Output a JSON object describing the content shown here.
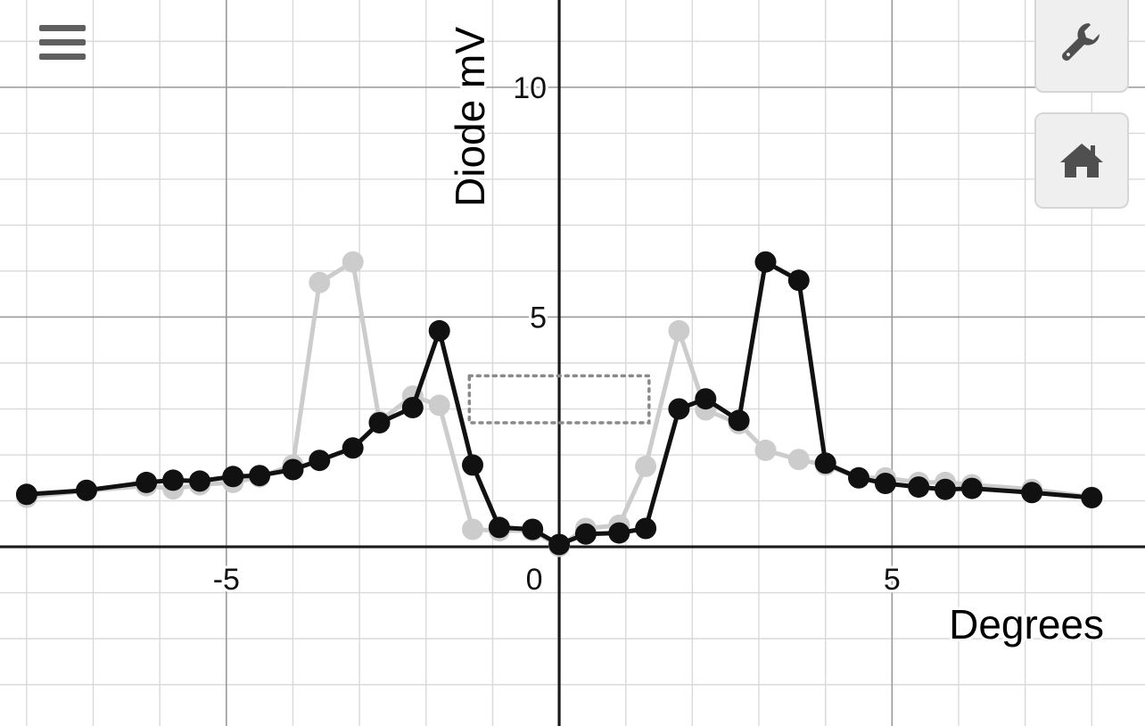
{
  "chart_data": {
    "type": "line",
    "xlabel": "Degrees",
    "ylabel": "Diode mV",
    "xlim": [
      -8.4,
      8.8
    ],
    "ylim": [
      -3.9,
      11.9
    ],
    "grid": true,
    "minor_grid": true,
    "x_ticks": [
      {
        "value": -5,
        "label": "-5"
      },
      {
        "value": 0,
        "label": "0"
      },
      {
        "value": 5,
        "label": "5"
      }
    ],
    "y_ticks": [
      {
        "value": 5,
        "label": "5"
      },
      {
        "value": 10,
        "label": "10"
      }
    ],
    "series": [
      {
        "color": "#cccccc",
        "x": [
          -8.0,
          -7.1,
          -6.2,
          -5.8,
          -5.4,
          -4.9,
          -4.5,
          -4.0,
          -3.6,
          -3.1,
          -2.7,
          -2.2,
          -1.8,
          -1.3,
          -0.9,
          -0.4,
          0.0,
          0.4,
          0.9,
          1.3,
          1.8,
          2.2,
          2.7,
          3.1,
          3.6,
          4.0,
          4.5,
          4.9,
          5.4,
          5.8,
          6.2,
          7.1,
          8.0
        ],
        "y": [
          1.08,
          1.22,
          1.33,
          1.26,
          1.35,
          1.4,
          1.52,
          1.78,
          5.75,
          6.2,
          2.73,
          3.28,
          3.08,
          0.38,
          0.35,
          0.35,
          0.01,
          0.4,
          0.47,
          1.75,
          4.7,
          2.98,
          2.68,
          2.1,
          1.9,
          1.78,
          1.5,
          1.5,
          1.4,
          1.4,
          1.35,
          1.25,
          1.08
        ]
      },
      {
        "color": "#111111",
        "x": [
          -8.0,
          -7.1,
          -6.2,
          -5.8,
          -5.4,
          -4.9,
          -4.5,
          -4.0,
          -3.6,
          -3.1,
          -2.7,
          -2.2,
          -1.8,
          -1.3,
          -0.9,
          -0.4,
          0.0,
          0.4,
          0.9,
          1.3,
          1.8,
          2.2,
          2.7,
          3.1,
          3.6,
          4.0,
          4.5,
          4.9,
          5.4,
          5.8,
          6.2,
          7.1,
          8.0
        ],
        "y": [
          1.14,
          1.23,
          1.4,
          1.45,
          1.43,
          1.53,
          1.55,
          1.68,
          1.88,
          2.15,
          2.7,
          3.03,
          4.7,
          1.78,
          0.42,
          0.38,
          0.05,
          0.28,
          0.3,
          0.4,
          3.0,
          3.22,
          2.75,
          6.2,
          5.8,
          1.82,
          1.5,
          1.38,
          1.3,
          1.25,
          1.27,
          1.18,
          1.07
        ]
      }
    ],
    "annotations": [
      {
        "type": "dotted-rectangle",
        "x1": -1.35,
        "x2": 1.35,
        "y1": 2.7,
        "y2": 3.72
      }
    ]
  },
  "ui": {
    "menu_icon": "hamburger-menu-icon",
    "settings_icon": "wrench-icon",
    "home_icon": "home-icon"
  }
}
